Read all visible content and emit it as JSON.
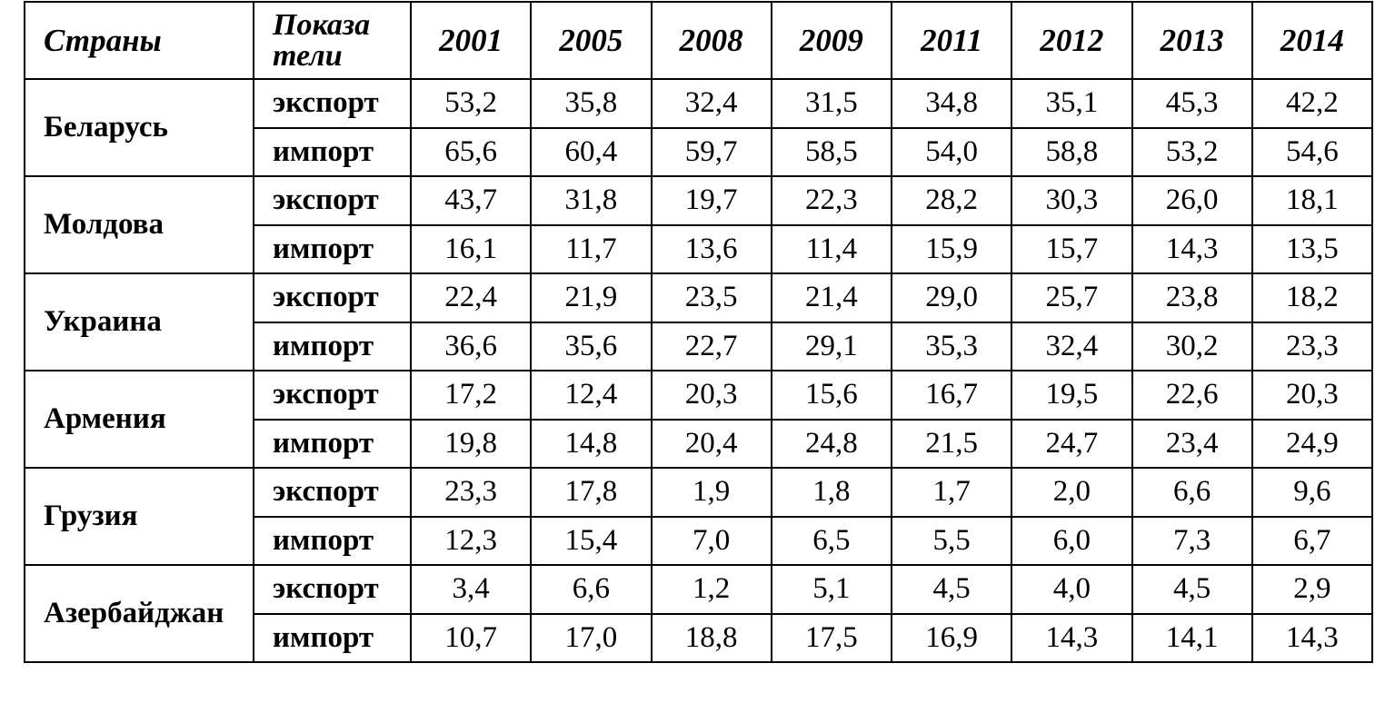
{
  "header": {
    "country": "Страны",
    "indicator_line1": "Показа",
    "indicator_line2": "тели",
    "years": [
      "2001",
      "2005",
      "2008",
      "2009",
      "2011",
      "2012",
      "2013",
      "2014"
    ]
  },
  "rows": [
    {
      "country": "Беларусь",
      "export_label": "экспорт",
      "export": [
        "53,2",
        "35,8",
        "32,4",
        "31,5",
        "34,8",
        "35,1",
        "45,3",
        "42,2"
      ],
      "import_label": "импорт",
      "import": [
        "65,6",
        "60,4",
        "59,7",
        "58,5",
        "54,0",
        "58,8",
        "53,2",
        "54,6"
      ]
    },
    {
      "country": "Молдова",
      "export_label": "экспорт",
      "export": [
        "43,7",
        "31,8",
        "19,7",
        "22,3",
        "28,2",
        "30,3",
        "26,0",
        "18,1"
      ],
      "import_label": "импорт",
      "import": [
        "16,1",
        "11,7",
        "13,6",
        "11,4",
        "15,9",
        "15,7",
        "14,3",
        "13,5"
      ]
    },
    {
      "country": "Украина",
      "export_label": "экспорт",
      "export": [
        "22,4",
        "21,9",
        "23,5",
        "21,4",
        "29,0",
        "25,7",
        "23,8",
        "18,2"
      ],
      "import_label": "импорт",
      "import": [
        "36,6",
        "35,6",
        "22,7",
        "29,1",
        "35,3",
        "32,4",
        "30,2",
        "23,3"
      ]
    },
    {
      "country": "Армения",
      "export_label": "экспорт",
      "export": [
        "17,2",
        "12,4",
        "20,3",
        "15,6",
        "16,7",
        "19,5",
        "22,6",
        "20,3"
      ],
      "import_label": "импорт",
      "import": [
        "19,8",
        "14,8",
        "20,4",
        "24,8",
        "21,5",
        "24,7",
        "23,4",
        "24,9"
      ]
    },
    {
      "country": "Грузия",
      "export_label": "экспорт",
      "export": [
        "23,3",
        "17,8",
        "1,9",
        "1,8",
        "1,7",
        "2,0",
        "6,6",
        "9,6"
      ],
      "import_label": "импорт",
      "import": [
        "12,3",
        "15,4",
        "7,0",
        "6,5",
        "5,5",
        "6,0",
        "7,3",
        "6,7"
      ]
    },
    {
      "country": "Азербайджан",
      "export_label": "экспорт",
      "export": [
        "3,4",
        "6,6",
        "1,2",
        "5,1",
        "4,5",
        "4,0",
        "4,5",
        "2,9"
      ],
      "import_label": "импорт",
      "import": [
        "10,7",
        "17,0",
        "18,8",
        "17,5",
        "16,9",
        "14,3",
        "14,1",
        "14,3"
      ]
    }
  ]
}
